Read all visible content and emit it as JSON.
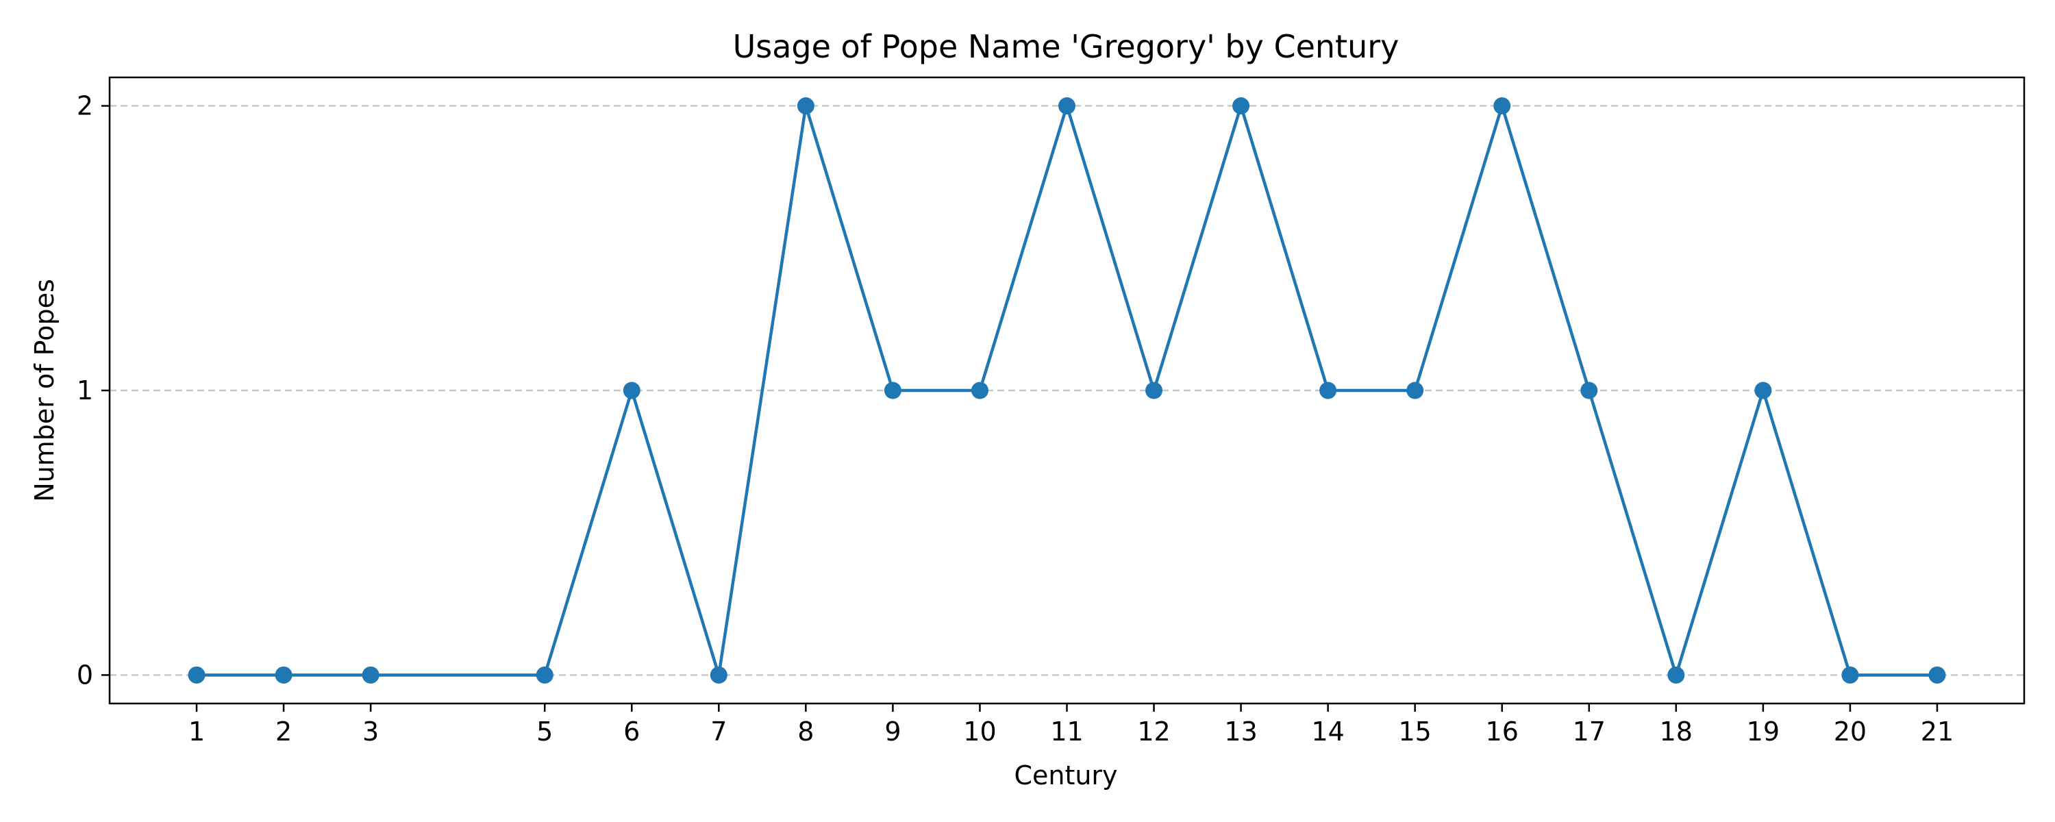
{
  "chart_data": {
    "type": "line",
    "title": "Usage of Pope Name 'Gregory' by Century",
    "xlabel": "Century",
    "ylabel": "Number of Popes",
    "x": [
      1,
      2,
      3,
      5,
      6,
      7,
      8,
      9,
      10,
      11,
      12,
      13,
      14,
      15,
      16,
      17,
      18,
      19,
      20,
      21
    ],
    "x_ticks": [
      "1",
      "2",
      "3",
      "5",
      "6",
      "7",
      "8",
      "9",
      "10",
      "11",
      "12",
      "13",
      "14",
      "15",
      "16",
      "17",
      "18",
      "19",
      "20",
      "21"
    ],
    "series": [
      {
        "values": [
          0,
          0,
          0,
          0,
          1,
          0,
          2,
          1,
          1,
          2,
          1,
          2,
          1,
          1,
          2,
          1,
          0,
          1,
          0,
          0
        ],
        "color": "#1f77b4",
        "marker": "circle"
      }
    ],
    "y_ticks": [
      "0",
      "1",
      "2"
    ],
    "xlim": [
      0,
      22
    ],
    "ylim": [
      -0.1,
      2.1
    ],
    "grid": "y-dashed",
    "grid_color": "#c8c8c8"
  }
}
